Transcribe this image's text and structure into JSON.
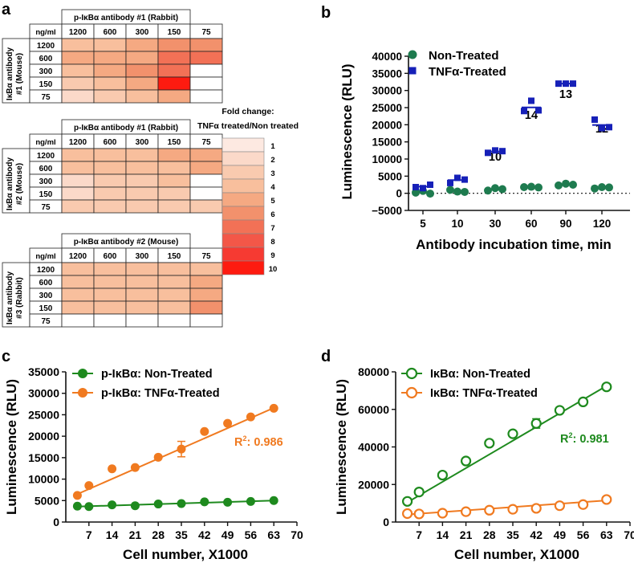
{
  "panel_labels": {
    "a": "a",
    "b": "b",
    "c": "c",
    "d": "d"
  },
  "heatmaps": {
    "conc_label": "ng/ml",
    "columns": [
      "1200",
      "600",
      "300",
      "150",
      "75"
    ],
    "rows": [
      "1200",
      "600",
      "300",
      "150",
      "75"
    ],
    "tables": [
      {
        "col_title": "p-IκBα antibody #1 (Rabbit)",
        "row_title_1": "IκBα antibody",
        "row_title_2": "#1 (Mouse)",
        "values": [
          [
            4,
            4,
            5,
            6,
            6
          ],
          [
            5,
            5,
            5,
            7,
            7
          ],
          [
            4,
            5,
            6,
            7,
            0
          ],
          [
            3,
            4,
            5,
            10,
            0
          ],
          [
            2,
            3,
            4,
            5,
            0
          ]
        ]
      },
      {
        "col_title": "p-IκBα antibody #1 (Rabbit)",
        "row_title_1": "IκBα antibody",
        "row_title_2": "#2 (Mouse)",
        "values": [
          [
            4,
            4,
            4,
            5,
            5
          ],
          [
            4,
            4,
            4,
            4,
            5
          ],
          [
            2,
            3,
            3,
            4,
            0
          ],
          [
            2,
            3,
            3,
            3,
            0
          ],
          [
            3,
            3,
            3,
            3,
            3
          ]
        ]
      },
      {
        "col_title": "p-IκBα antibody #2 (Mouse)",
        "row_title_1": "IκBα antibody",
        "row_title_2": "#3 (Rabbit)",
        "values": [
          [
            4,
            4,
            4,
            4,
            4
          ],
          [
            4,
            4,
            4,
            4,
            5
          ],
          [
            4,
            4,
            4,
            4,
            5
          ],
          [
            4,
            4,
            4,
            4,
            6
          ],
          [
            0,
            0,
            0,
            0,
            0
          ]
        ]
      }
    ],
    "legend": {
      "title_1": "Fold change:",
      "title_2": "TNFα treated/Non treated",
      "levels": [
        "1",
        "2",
        "3",
        "4",
        "5",
        "6",
        "7",
        "8",
        "9",
        "10"
      ],
      "colors": [
        "#fde9e1",
        "#fbd9c9",
        "#f9caaf",
        "#f8bf9d",
        "#f5a982",
        "#f2916c",
        "#f27156",
        "#f35748",
        "#f63a32",
        "#fd1b10"
      ]
    }
  },
  "chart_data": [
    {
      "panel": "b",
      "type": "scatter",
      "xlabel": "Antibody incubation time, min",
      "ylabel": "Luminescence (RLU)",
      "categories": [
        "5",
        "10",
        "30",
        "60",
        "90",
        "120"
      ],
      "yticks": [
        -5000,
        0,
        5000,
        10000,
        15000,
        20000,
        25000,
        30000,
        35000,
        40000
      ],
      "ytick_labels": [
        "−5000",
        "0",
        "5000",
        "10000",
        "15000",
        "20000",
        "25000",
        "30000",
        "35000",
        "40000"
      ],
      "ylim": [
        -5000,
        40000
      ],
      "zero_line": "dotted",
      "annotations": [
        "",
        "",
        "10",
        "14",
        "13",
        "12"
      ],
      "series": [
        {
          "name": "Non-Treated",
          "color": "#1e7b4f",
          "marker": "circle",
          "points": [
            [
              200,
              700,
              -100
            ],
            [
              1000,
              500,
              400
            ],
            [
              800,
              1500,
              1200
            ],
            [
              1800,
              1900,
              1700
            ],
            [
              2300,
              2800,
              2500
            ],
            [
              1400,
              1800,
              1700
            ]
          ]
        },
        {
          "name": "TNFα-Treated",
          "color": "#1620b8",
          "marker": "square",
          "points": [
            [
              1800,
              1500,
              2500
            ],
            [
              3000,
              4500,
              4000
            ],
            [
              11800,
              12500,
              12300
            ],
            [
              24000,
              27000,
              24200
            ],
            [
              32000,
              32000,
              32000
            ],
            [
              21500,
              19000,
              19300
            ]
          ]
        }
      ]
    },
    {
      "panel": "c",
      "type": "scatter",
      "xlabel": "Cell number, X1000",
      "ylabel": "Luminescence (RLU)",
      "xlim": [
        0,
        70
      ],
      "xticks": [
        7,
        14,
        21,
        28,
        35,
        42,
        49,
        56,
        63,
        70
      ],
      "xtick_labels": [
        "7",
        "14",
        "21",
        "28",
        "35",
        "42",
        "49",
        "56",
        "63",
        "70"
      ],
      "ylim": [
        0,
        35000
      ],
      "yticks": [
        0,
        5000,
        10000,
        15000,
        20000,
        25000,
        30000,
        35000
      ],
      "ytick_labels": [
        "0",
        "5000",
        "10000",
        "15000",
        "20000",
        "25000",
        "30000",
        "35000"
      ],
      "r2_label": "R",
      "r2_exp": "2",
      "r2_value": ": 0.986",
      "series": [
        {
          "name": "p-IκBα: Non-Treated",
          "color": "#1e8a1e",
          "marker": "filled-circle",
          "x": [
            3.5,
            7,
            14,
            21,
            28,
            35,
            42,
            49,
            56,
            63
          ],
          "y": [
            3700,
            3600,
            4000,
            3800,
            4200,
            4300,
            4700,
            4600,
            4800,
            5000
          ],
          "fit": [
            [
              3.5,
              3600
            ],
            [
              63,
              5000
            ]
          ]
        },
        {
          "name": "p-IκBα: TNFα-Treated",
          "color": "#f07a20",
          "marker": "filled-circle",
          "x": [
            3.5,
            7,
            14,
            21,
            28,
            35,
            42,
            49,
            56,
            63
          ],
          "y": [
            6200,
            8500,
            12400,
            12700,
            15100,
            17000,
            21100,
            23000,
            24500,
            26500
          ],
          "err": [
            0,
            0,
            0,
            0,
            0,
            1800,
            0,
            0,
            0,
            0
          ],
          "fit": [
            [
              3.5,
              6500
            ],
            [
              63,
              26600
            ]
          ]
        }
      ]
    },
    {
      "panel": "d",
      "type": "scatter",
      "xlabel": "Cell number, X1000",
      "ylabel": "Luminescence (RLU)",
      "xlim": [
        0,
        70
      ],
      "xticks": [
        7,
        14,
        21,
        28,
        35,
        42,
        49,
        56,
        63,
        70
      ],
      "xtick_labels": [
        "7",
        "14",
        "21",
        "28",
        "35",
        "42",
        "49",
        "56",
        "63",
        "70"
      ],
      "ylim": [
        0,
        80000
      ],
      "yticks": [
        0,
        20000,
        40000,
        60000,
        80000
      ],
      "ytick_labels": [
        "0",
        "20000",
        "40000",
        "60000",
        "80000"
      ],
      "r2_label": "R",
      "r2_exp": "2",
      "r2_value": ": 0.981",
      "series": [
        {
          "name": "IκBα: Non-Treated",
          "color": "#1e8a1e",
          "marker": "open-circle",
          "x": [
            3.5,
            7,
            14,
            21,
            28,
            35,
            42,
            49,
            56,
            63
          ],
          "y": [
            11000,
            16000,
            25000,
            32500,
            42000,
            47000,
            52500,
            59500,
            64000,
            72000
          ],
          "err": [
            0,
            0,
            0,
            0,
            0,
            0,
            2500,
            0,
            0,
            0
          ],
          "fit": [
            [
              3.5,
              10500
            ],
            [
              63,
              72500
            ]
          ]
        },
        {
          "name": "IκBα: TNFα-Treated",
          "color": "#f07a20",
          "marker": "open-circle",
          "x": [
            3.5,
            7,
            14,
            21,
            28,
            35,
            42,
            49,
            56,
            63
          ],
          "y": [
            4500,
            4300,
            4700,
            5500,
            6300,
            6800,
            7300,
            8700,
            9300,
            12000
          ],
          "fit": [
            [
              3.5,
              4000
            ],
            [
              63,
              11500
            ]
          ]
        }
      ]
    }
  ]
}
